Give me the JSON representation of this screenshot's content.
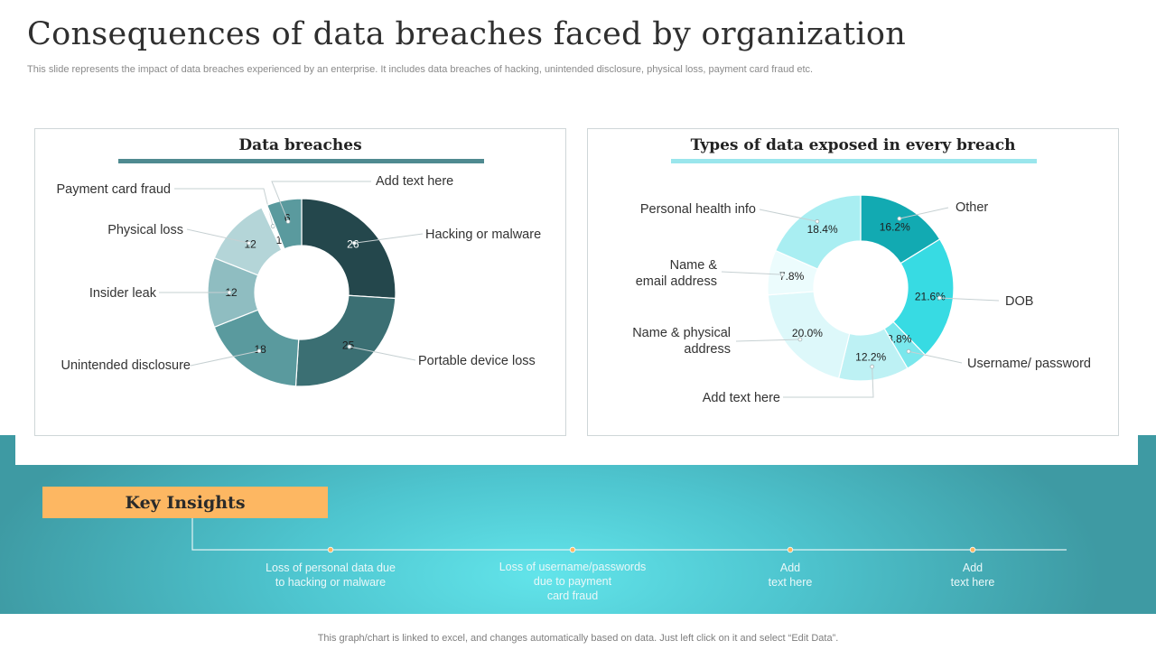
{
  "title": "Consequences of data breaches faced by organization",
  "subtitle": "This slide represents the impact of data breaches experienced by an enterprise. It includes data breaches of hacking, unintended disclosure, physical loss, payment card fraud etc.",
  "colors": {
    "left_series": [
      "#24474c",
      "#3b6f73",
      "#5a9a9e",
      "#8fbdc1",
      "#b4d5d8",
      "#ffffff",
      "#5a9a9e"
    ],
    "right_series": [
      "#12aab2",
      "#37dbe3",
      "#7ae7ec",
      "#bdf1f4",
      "#ddf8fa",
      "#ecfcfd",
      "#a9eef2"
    ],
    "key_box": "#fdb762"
  },
  "chart_data": [
    {
      "type": "pie",
      "title": "Data breaches",
      "categories": [
        "Hacking or malware",
        "Portable device loss",
        "Unintended disclosure",
        "Insider leak",
        "Physical loss",
        "Payment card fraud",
        "Add text here"
      ],
      "values": [
        26,
        25,
        18,
        12,
        12,
        1,
        6
      ],
      "value_labels": [
        "26",
        "25",
        "18",
        "12",
        "12",
        "1",
        "6"
      ]
    },
    {
      "type": "pie",
      "title": "Types of data exposed in every breach",
      "categories": [
        "Other",
        "DOB",
        "Username/ password",
        "Add text here",
        "Name & physical address",
        "Name & email address",
        "Personal health info"
      ],
      "values": [
        16.2,
        21.6,
        3.8,
        12.2,
        20.0,
        7.8,
        18.4
      ],
      "value_labels": [
        "16.2%",
        "21.6%",
        "3.8%",
        "12.2%",
        "20.0%",
        "7.8%",
        "18.4%"
      ]
    }
  ],
  "key_insights": {
    "heading": "Key Insights",
    "items": [
      "Loss of personal  data due\nto hacking or malware",
      "Loss of username/passwords\ndue to payment\ncard fraud",
      "Add\ntext here",
      "Add\ntext here"
    ]
  },
  "footer": "This graph/chart is linked to excel,  and changes automatically based on data. Just left click on it and select “Edit Data”."
}
